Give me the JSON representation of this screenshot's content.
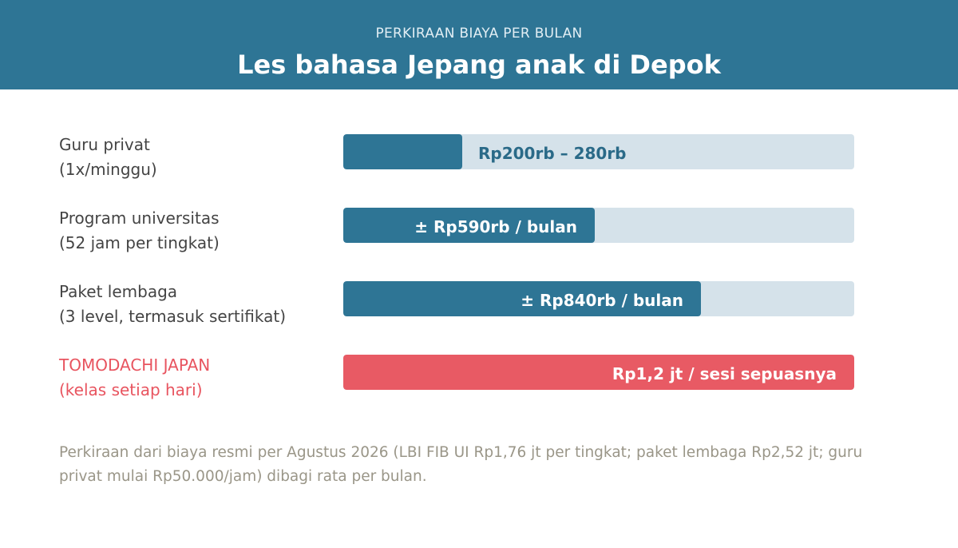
{
  "header": {
    "subtitle": "PERKIRAAN BIAYA PER BULAN",
    "title": "Les bahasa Jepang anak di Depok"
  },
  "colors": {
    "header_bg": "#2e7595",
    "bar_fill": "#2e7595",
    "bar_track": "#d5e2ea",
    "highlight": "#e85a64"
  },
  "chart_data": {
    "type": "bar",
    "orientation": "horizontal",
    "title": "Les bahasa Jepang anak di Depok",
    "subtitle": "PERKIRAAN BIAYA PER BULAN",
    "unit": "Rp per bulan",
    "xlim": [
      0,
      1200000
    ],
    "categories": [
      "Guru privat (1x/minggu)",
      "Program universitas (52 jam per tingkat)",
      "Paket lembaga (3 level, termasuk sertifikat)",
      "TOMODACHI JAPAN (kelas setiap hari)"
    ],
    "bars": [
      {
        "label_line1": "Guru privat",
        "label_line2": "(1x/minggu)",
        "value": 280000,
        "value_label": "Rp200rb – 280rb",
        "highlight": false
      },
      {
        "label_line1": "Program universitas",
        "label_line2": "(52 jam per tingkat)",
        "value": 590000,
        "value_label": "± Rp590rb / bulan",
        "highlight": false
      },
      {
        "label_line1": "Paket lembaga",
        "label_line2": "(3 level, termasuk sertifikat)",
        "value": 840000,
        "value_label": "± Rp840rb / bulan",
        "highlight": false
      },
      {
        "label_line1": "TOMODACHI JAPAN",
        "label_line2": "(kelas setiap hari)",
        "value": 1200000,
        "value_label": "Rp1,2 jt / sesi sepuasnya",
        "highlight": true
      }
    ]
  },
  "footnote": "Perkiraan dari biaya resmi per Agustus 2026 (LBI FIB UI Rp1,76 jt per tingkat; paket lembaga Rp2,52 jt; guru privat mulai Rp50.000/jam) dibagi rata per bulan."
}
